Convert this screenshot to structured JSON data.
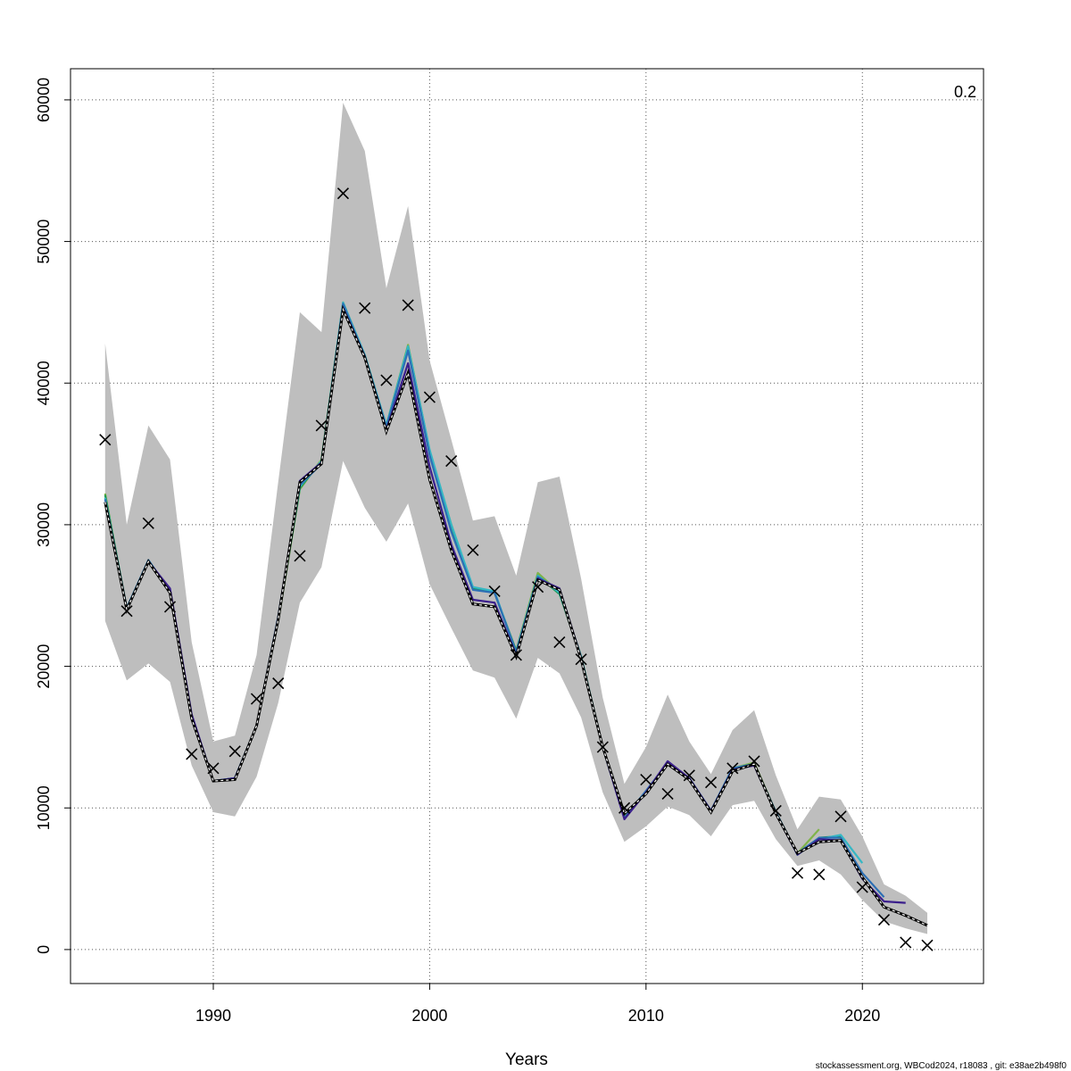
{
  "chart_data": {
    "type": "line",
    "title": "",
    "xlabel": "Years",
    "ylabel": "",
    "corner_label": "0.2",
    "footer": "stockassessment.org, WBCod2024, r18083 , git: e38ae2b498f0",
    "xlim": [
      1983.4,
      2025.6
    ],
    "ylim": [
      -2400,
      62200
    ],
    "x_ticks": [
      1990,
      2000,
      2010,
      2020
    ],
    "y_ticks": [
      0,
      10000,
      20000,
      30000,
      40000,
      50000,
      60000
    ],
    "grid": true,
    "colors": {
      "band": "#bebebe",
      "main": "#000000",
      "peels": [
        "#3b1f8c",
        "#2c6fb5",
        "#35b7c4",
        "#1f9a4f",
        "#7fb34a",
        "#a9a23a"
      ]
    },
    "confidence_band": {
      "x": [
        1985,
        1986,
        1987,
        1988,
        1989,
        1990,
        1991,
        1992,
        1993,
        1994,
        1995,
        1996,
        1997,
        1998,
        1999,
        2000,
        2001,
        2002,
        2003,
        2004,
        2005,
        2006,
        2007,
        2008,
        2009,
        2010,
        2011,
        2012,
        2013,
        2014,
        2015,
        2016,
        2017,
        2018,
        2019,
        2020,
        2021,
        2022,
        2023
      ],
      "lower": [
        23200,
        19000,
        20200,
        18900,
        13000,
        9700,
        9400,
        12200,
        17400,
        24500,
        27000,
        34500,
        31200,
        28800,
        31500,
        25800,
        22700,
        19700,
        19200,
        16300,
        20600,
        19500,
        16400,
        11100,
        7600,
        8700,
        10100,
        9500,
        8000,
        10200,
        10500,
        7800,
        5900,
        6300,
        5300,
        3500,
        2000,
        1500,
        1100
      ],
      "upper": [
        42800,
        30000,
        37000,
        34600,
        21700,
        14700,
        15100,
        20800,
        33000,
        45000,
        43600,
        59800,
        56400,
        46700,
        52500,
        41600,
        36000,
        30300,
        30600,
        26400,
        33000,
        33400,
        26200,
        17800,
        11700,
        14300,
        18000,
        14700,
        12400,
        15500,
        16900,
        12300,
        8500,
        10800,
        10600,
        8000,
        4600,
        3800,
        2600
      ]
    },
    "series": [
      {
        "values": [
          31600,
          24000,
          27400,
          25200,
          16300,
          11900,
          12000,
          15800,
          23300,
          33000,
          34300,
          45200,
          41800,
          36600,
          40700,
          33200,
          28200,
          24400,
          24200,
          20700,
          26100,
          25400,
          20500,
          14300,
          9600,
          11000,
          13100,
          12000,
          9700,
          12600,
          13100,
          9600,
          6800,
          7600,
          7700,
          5100,
          3000,
          2400,
          1700
        ]
      },
      {
        "values": [
          31600,
          24000,
          27400,
          25500,
          16600,
          11900,
          12100,
          15800,
          23400,
          33100,
          34400,
          45300,
          41900,
          36700,
          41400,
          34100,
          28600,
          24700,
          24500,
          20800,
          26200,
          25500,
          20600,
          14300,
          9200,
          11100,
          13300,
          12100,
          9800,
          12700,
          13000,
          9600,
          6700,
          7800,
          7700,
          5000,
          3400,
          3300
        ]
      },
      {
        "values": [
          31800,
          24100,
          27500,
          25300,
          16500,
          11900,
          12100,
          15800,
          23500,
          32800,
          34300,
          45600,
          41900,
          36900,
          42300,
          34900,
          29500,
          25400,
          25200,
          21000,
          26300,
          25400,
          20600,
          14300,
          9300,
          11200,
          13200,
          12100,
          9800,
          12800,
          13100,
          9700,
          6800,
          7900,
          7900,
          5400,
          3700
        ]
      },
      {
        "values": [
          31900,
          24100,
          27500,
          25300,
          16500,
          11900,
          12100,
          15800,
          23400,
          32700,
          34500,
          45700,
          42000,
          37000,
          42600,
          35300,
          30000,
          25600,
          25300,
          21000,
          26400,
          25200,
          20700,
          14300,
          9300,
          11200,
          13100,
          12100,
          9800,
          12800,
          13100,
          9700,
          6700,
          7800,
          8100,
          6100
        ]
      },
      {
        "values": [
          32100,
          24100,
          27400,
          25300,
          16500,
          11900,
          12100,
          15800,
          23300,
          32600,
          34500,
          45500,
          41900,
          37000,
          42600,
          35200,
          29900,
          25500,
          25200,
          21100,
          26400,
          25100,
          20700,
          14300,
          9300,
          11100,
          13100,
          12100,
          9800,
          12800,
          13100,
          9700,
          6700,
          7900,
          8000
        ]
      },
      {
        "values": [
          32200,
          24000,
          27400,
          25200,
          16400,
          11900,
          12100,
          15800,
          23200,
          32500,
          34600,
          45700,
          42000,
          37000,
          42700,
          35200,
          30000,
          25500,
          25200,
          21100,
          26600,
          25200,
          20700,
          14300,
          9400,
          11100,
          13100,
          12000,
          9800,
          12800,
          13200,
          9700,
          6800,
          8500
        ]
      }
    ],
    "observations": {
      "x": [
        1985,
        1986,
        1987,
        1988,
        1989,
        1990,
        1991,
        1992,
        1993,
        1994,
        1995,
        1996,
        1997,
        1998,
        1999,
        2000,
        2001,
        2002,
        2003,
        2004,
        2005,
        2006,
        2007,
        2008,
        2009,
        2010,
        2011,
        2012,
        2013,
        2014,
        2015,
        2016,
        2017,
        2018,
        2019,
        2020,
        2021,
        2022,
        2023
      ],
      "y": [
        36000,
        23900,
        30100,
        24200,
        13800,
        12800,
        14000,
        17700,
        18800,
        27800,
        37000,
        53400,
        45300,
        40200,
        45500,
        39000,
        34500,
        28200,
        25300,
        20800,
        25600,
        21700,
        20500,
        14300,
        10000,
        12000,
        11000,
        12300,
        11800,
        12800,
        13300,
        9800,
        5400,
        5300,
        9400,
        4400,
        2100,
        500,
        300
      ]
    }
  }
}
